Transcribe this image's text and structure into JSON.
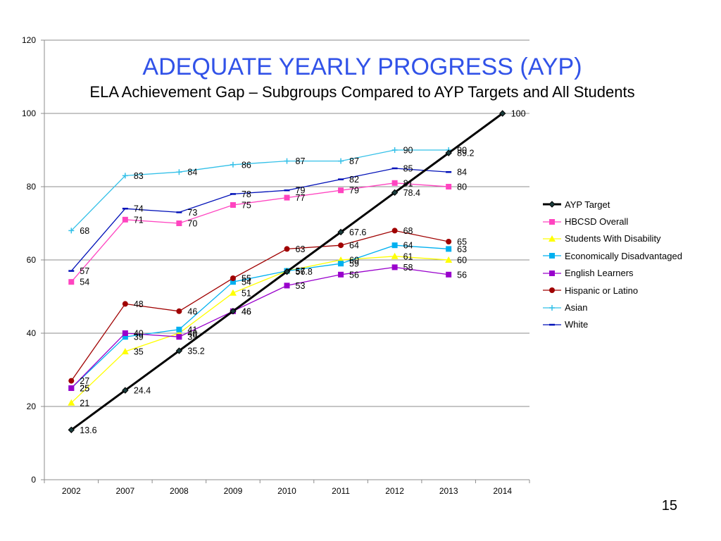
{
  "slide": {
    "title": "ADEQUATE YEARLY PROGRESS (AYP)",
    "subtitle": "ELA Achievement Gap – Subgroups Compared to AYP Targets and All Students",
    "page_number": "15"
  },
  "colors": {
    "AYP Target": "#000000",
    "HBCSD Overall": "#ff44c0",
    "Students With Disability": "#ffff00",
    "Economically Disadvantaged": "#00b0f0",
    "English Learners": "#9900cc",
    "Hispanic or Latino": "#a00000",
    "Asian": "#33c0e8",
    "White": "#0010b8"
  },
  "chart_data": {
    "type": "line",
    "title": "ADEQUATE YEARLY PROGRESS (AYP)",
    "subtitle": "ELA Achievement Gap – Subgroups Compared to AYP Targets and All Students",
    "categories": [
      "2002",
      "2007",
      "2008",
      "2009",
      "2010",
      "2011",
      "2012",
      "2013",
      "2014"
    ],
    "ylim": [
      0,
      120
    ],
    "yticks": [
      "0",
      "20",
      "40",
      "60",
      "80",
      "100",
      "120"
    ],
    "grid": true,
    "legend": "right",
    "series": [
      {
        "name": "AYP Target",
        "marker": "diamond",
        "values": [
          13.6,
          24.4,
          35.2,
          46,
          56.8,
          67.6,
          78.4,
          89.2,
          100
        ]
      },
      {
        "name": "HBCSD Overall",
        "marker": "square",
        "values": [
          54,
          71,
          70,
          75,
          77,
          79,
          81,
          80,
          null
        ]
      },
      {
        "name": "Students With Disability",
        "marker": "triangle",
        "values": [
          21,
          35,
          40,
          51,
          57,
          60,
          61,
          60,
          null
        ]
      },
      {
        "name": "Economically Disadvantaged",
        "marker": "square",
        "values": [
          25,
          39,
          41,
          54,
          57,
          59,
          64,
          63,
          null
        ]
      },
      {
        "name": "English Learners",
        "marker": "square",
        "values": [
          25,
          40,
          39,
          46,
          53,
          56,
          58,
          56,
          null
        ]
      },
      {
        "name": "Hispanic or Latino",
        "marker": "circle",
        "values": [
          27,
          48,
          46,
          55,
          63,
          64,
          68,
          65,
          null
        ]
      },
      {
        "name": "Asian",
        "marker": "plus",
        "values": [
          68,
          83,
          84,
          86,
          87,
          87,
          90,
          90,
          null
        ]
      },
      {
        "name": "White",
        "marker": "dash",
        "values": [
          57,
          74,
          73,
          78,
          79,
          82,
          85,
          84,
          null
        ]
      }
    ]
  }
}
